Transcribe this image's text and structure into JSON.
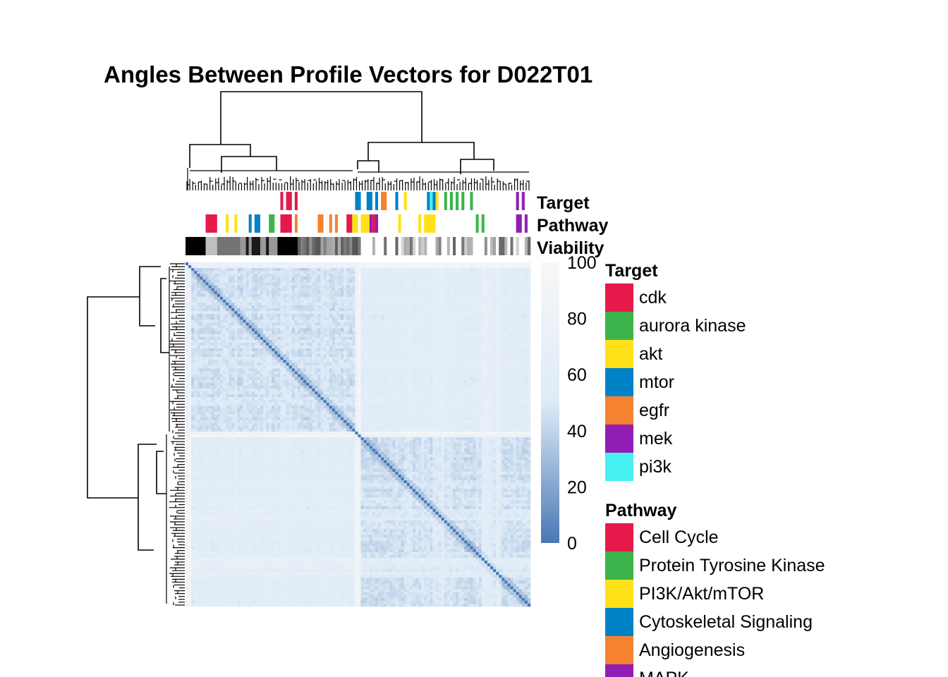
{
  "chart_data": {
    "type": "heatmap",
    "title": "Angles Between Profile Vectors for D022T01",
    "n_samples": 120,
    "annotation_tracks": [
      "Target",
      "Pathway",
      "Viability"
    ],
    "colorbar": {
      "ticks": [
        100,
        80,
        60,
        40,
        20,
        0
      ],
      "range": [
        0,
        100
      ],
      "low_color": "#4a77b4",
      "mid_color": "#deebf7",
      "high_color": "#f7f7f7"
    },
    "legends": [
      {
        "title": "Target",
        "entries": [
          {
            "label": "cdk",
            "color": "#e6194b"
          },
          {
            "label": "aurora kinase",
            "color": "#3cb44b"
          },
          {
            "label": "akt",
            "color": "#ffe119"
          },
          {
            "label": "mtor",
            "color": "#0082c8"
          },
          {
            "label": "egfr",
            "color": "#f58231"
          },
          {
            "label": "mek",
            "color": "#911eb4"
          },
          {
            "label": "pi3k",
            "color": "#46f0f0"
          }
        ]
      },
      {
        "title": "Pathway",
        "entries": [
          {
            "label": "Cell Cycle",
            "color": "#e6194b"
          },
          {
            "label": "Protein Tyrosine Kinase",
            "color": "#3cb44b"
          },
          {
            "label": "PI3K/Akt/mTOR",
            "color": "#ffe119"
          },
          {
            "label": "Cytoskeletal Signaling",
            "color": "#0082c8"
          },
          {
            "label": "Angiogenesis",
            "color": "#f58231"
          },
          {
            "label": "MAPK",
            "color": "#911eb4"
          }
        ]
      }
    ],
    "target_segments": [
      {
        "start": 33,
        "end": 34,
        "label": "cdk"
      },
      {
        "start": 35,
        "end": 37,
        "label": "cdk"
      },
      {
        "start": 38,
        "end": 39,
        "label": "cdk"
      },
      {
        "start": 59,
        "end": 61,
        "label": "mtor"
      },
      {
        "start": 63,
        "end": 65,
        "label": "mtor"
      },
      {
        "start": 66,
        "end": 67,
        "label": "mtor"
      },
      {
        "start": 68,
        "end": 70,
        "label": "egfr"
      },
      {
        "start": 73,
        "end": 74,
        "label": "mtor"
      },
      {
        "start": 76,
        "end": 77,
        "label": "akt"
      },
      {
        "start": 84,
        "end": 85,
        "label": "mtor"
      },
      {
        "start": 85,
        "end": 86,
        "label": "pi3k"
      },
      {
        "start": 86,
        "end": 87,
        "label": "mtor"
      },
      {
        "start": 87,
        "end": 88,
        "label": "akt"
      },
      {
        "start": 90,
        "end": 91,
        "label": "aurora kinase"
      },
      {
        "start": 92,
        "end": 93,
        "label": "aurora kinase"
      },
      {
        "start": 94,
        "end": 95,
        "label": "aurora kinase"
      },
      {
        "start": 96,
        "end": 97,
        "label": "aurora kinase"
      },
      {
        "start": 99,
        "end": 100,
        "label": "aurora kinase"
      },
      {
        "start": 115,
        "end": 116,
        "label": "mek"
      },
      {
        "start": 117,
        "end": 118,
        "label": "mek"
      }
    ],
    "pathway_segments": [
      {
        "start": 7,
        "end": 11,
        "label": "Cell Cycle"
      },
      {
        "start": 14,
        "end": 15,
        "label": "PI3K/Akt/mTOR"
      },
      {
        "start": 17,
        "end": 18,
        "label": "PI3K/Akt/mTOR"
      },
      {
        "start": 22,
        "end": 23,
        "label": "Cytoskeletal Signaling"
      },
      {
        "start": 24,
        "end": 26,
        "label": "Cytoskeletal Signaling"
      },
      {
        "start": 29,
        "end": 31,
        "label": "Protein Tyrosine Kinase"
      },
      {
        "start": 33,
        "end": 37,
        "label": "Cell Cycle"
      },
      {
        "start": 38,
        "end": 39,
        "label": "Angiogenesis"
      },
      {
        "start": 46,
        "end": 48,
        "label": "Angiogenesis"
      },
      {
        "start": 50,
        "end": 51,
        "label": "Angiogenesis"
      },
      {
        "start": 52,
        "end": 53,
        "label": "Angiogenesis"
      },
      {
        "start": 56,
        "end": 58,
        "label": "Cell Cycle"
      },
      {
        "start": 58,
        "end": 60,
        "label": "PI3K/Akt/mTOR"
      },
      {
        "start": 61,
        "end": 64,
        "label": "PI3K/Akt/mTOR"
      },
      {
        "start": 64,
        "end": 65,
        "label": "MAPK"
      },
      {
        "start": 65,
        "end": 66,
        "label": "Cell Cycle"
      },
      {
        "start": 66,
        "end": 67,
        "label": "MAPK"
      },
      {
        "start": 74,
        "end": 75,
        "label": "PI3K/Akt/mTOR"
      },
      {
        "start": 81,
        "end": 82,
        "label": "PI3K/Akt/mTOR"
      },
      {
        "start": 83,
        "end": 87,
        "label": "PI3K/Akt/mTOR"
      },
      {
        "start": 101,
        "end": 102,
        "label": "Protein Tyrosine Kinase"
      },
      {
        "start": 103,
        "end": 104,
        "label": "Protein Tyrosine Kinase"
      },
      {
        "start": 115,
        "end": 117,
        "label": "MAPK"
      },
      {
        "start": 118,
        "end": 119,
        "label": "MAPK"
      }
    ]
  }
}
